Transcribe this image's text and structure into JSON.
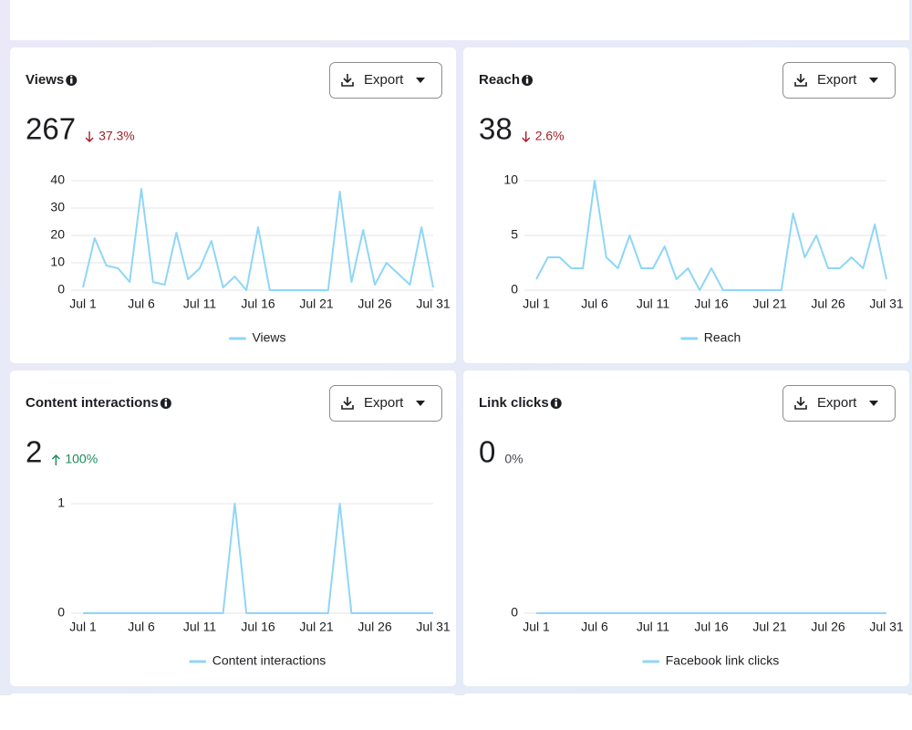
{
  "cards": [
    {
      "title": "Views",
      "total": 267,
      "change": "37.3%",
      "direction": "down",
      "change_color": "#a3202a",
      "export": "Export",
      "chart": {
        "type": "line",
        "categories": [
          "Jul 1",
          null,
          null,
          null,
          null,
          "Jul 6",
          null,
          null,
          null,
          null,
          "Jul 11",
          null,
          null,
          null,
          null,
          "Jul 16",
          null,
          null,
          null,
          null,
          "Jul 21",
          null,
          null,
          null,
          null,
          "Jul 26",
          null,
          null,
          null,
          null,
          "Jul 31"
        ],
        "series": [
          {
            "name": "Views",
            "color": "#8fd6f7",
            "values": [
              1,
              19,
              9,
              8,
              3,
              37,
              3,
              2,
              21,
              4,
              8,
              18,
              1,
              5,
              0,
              23,
              0,
              0,
              0,
              0,
              0,
              0,
              36,
              3,
              22,
              2,
              10,
              6,
              2,
              23,
              1
            ]
          }
        ],
        "ylim": [
          0,
          40
        ],
        "yticks": [
          0,
          10,
          20,
          30,
          40
        ],
        "grid": true
      }
    },
    {
      "title": "Reach",
      "total": 38,
      "change": "2.6%",
      "direction": "down",
      "change_color": "#a3202a",
      "export": "Export",
      "chart": {
        "type": "line",
        "categories": [
          "Jul 1",
          null,
          null,
          null,
          null,
          "Jul 6",
          null,
          null,
          null,
          null,
          "Jul 11",
          null,
          null,
          null,
          null,
          "Jul 16",
          null,
          null,
          null,
          null,
          "Jul 21",
          null,
          null,
          null,
          null,
          "Jul 26",
          null,
          null,
          null,
          null,
          "Jul 31"
        ],
        "series": [
          {
            "name": "Reach",
            "color": "#8fd6f7",
            "values": [
              1,
              3,
              3,
              2,
              2,
              10,
              3,
              2,
              5,
              2,
              2,
              4,
              1,
              2,
              0,
              2,
              0,
              0,
              0,
              0,
              0,
              0,
              7,
              3,
              5,
              2,
              2,
              3,
              2,
              6,
              1
            ]
          }
        ],
        "ylim": [
          0,
          10
        ],
        "yticks": [
          0,
          5,
          10
        ],
        "grid": true
      }
    },
    {
      "title": "Content interactions",
      "total": 2,
      "change": "100%",
      "direction": "up",
      "change_color": "#1e8a5b",
      "export": "Export",
      "chart": {
        "type": "line",
        "categories": [
          "Jul 1",
          null,
          null,
          null,
          null,
          "Jul 6",
          null,
          null,
          null,
          null,
          "Jul 11",
          null,
          null,
          null,
          null,
          "Jul 16",
          null,
          null,
          null,
          null,
          "Jul 21",
          null,
          null,
          null,
          null,
          "Jul 26",
          null,
          null,
          null,
          null,
          "Jul 31"
        ],
        "series": [
          {
            "name": "Content interactions",
            "color": "#8fd6f7",
            "values": [
              0,
              0,
              0,
              0,
              0,
              0,
              0,
              0,
              0,
              0,
              0,
              0,
              0,
              1,
              0,
              0,
              0,
              0,
              0,
              0,
              0,
              0,
              1,
              0,
              0,
              0,
              0,
              0,
              0,
              0,
              0
            ]
          }
        ],
        "ylim": [
          0,
          1
        ],
        "yticks": [
          0,
          1
        ],
        "grid": true
      }
    },
    {
      "title": "Link clicks",
      "total": 0,
      "change": "0%",
      "change_color": "#444950",
      "export": "Export",
      "chart": {
        "type": "line",
        "categories": [
          "Jul 1",
          null,
          null,
          null,
          null,
          "Jul 6",
          null,
          null,
          null,
          null,
          "Jul 11",
          null,
          null,
          null,
          null,
          "Jul 16",
          null,
          null,
          null,
          null,
          "Jul 21",
          null,
          null,
          null,
          null,
          "Jul 26",
          null,
          null,
          null,
          null,
          "Jul 31"
        ],
        "series": [
          {
            "name": "Facebook link clicks",
            "color": "#8fd6f7",
            "values": [
              0,
              0,
              0,
              0,
              0,
              0,
              0,
              0,
              0,
              0,
              0,
              0,
              0,
              0,
              0,
              0,
              0,
              0,
              0,
              0,
              0,
              0,
              0,
              0,
              0,
              0,
              0,
              0,
              0,
              0,
              0
            ]
          }
        ],
        "ylim": [
          0,
          1
        ],
        "yticks": [
          0
        ],
        "grid": true
      }
    }
  ]
}
